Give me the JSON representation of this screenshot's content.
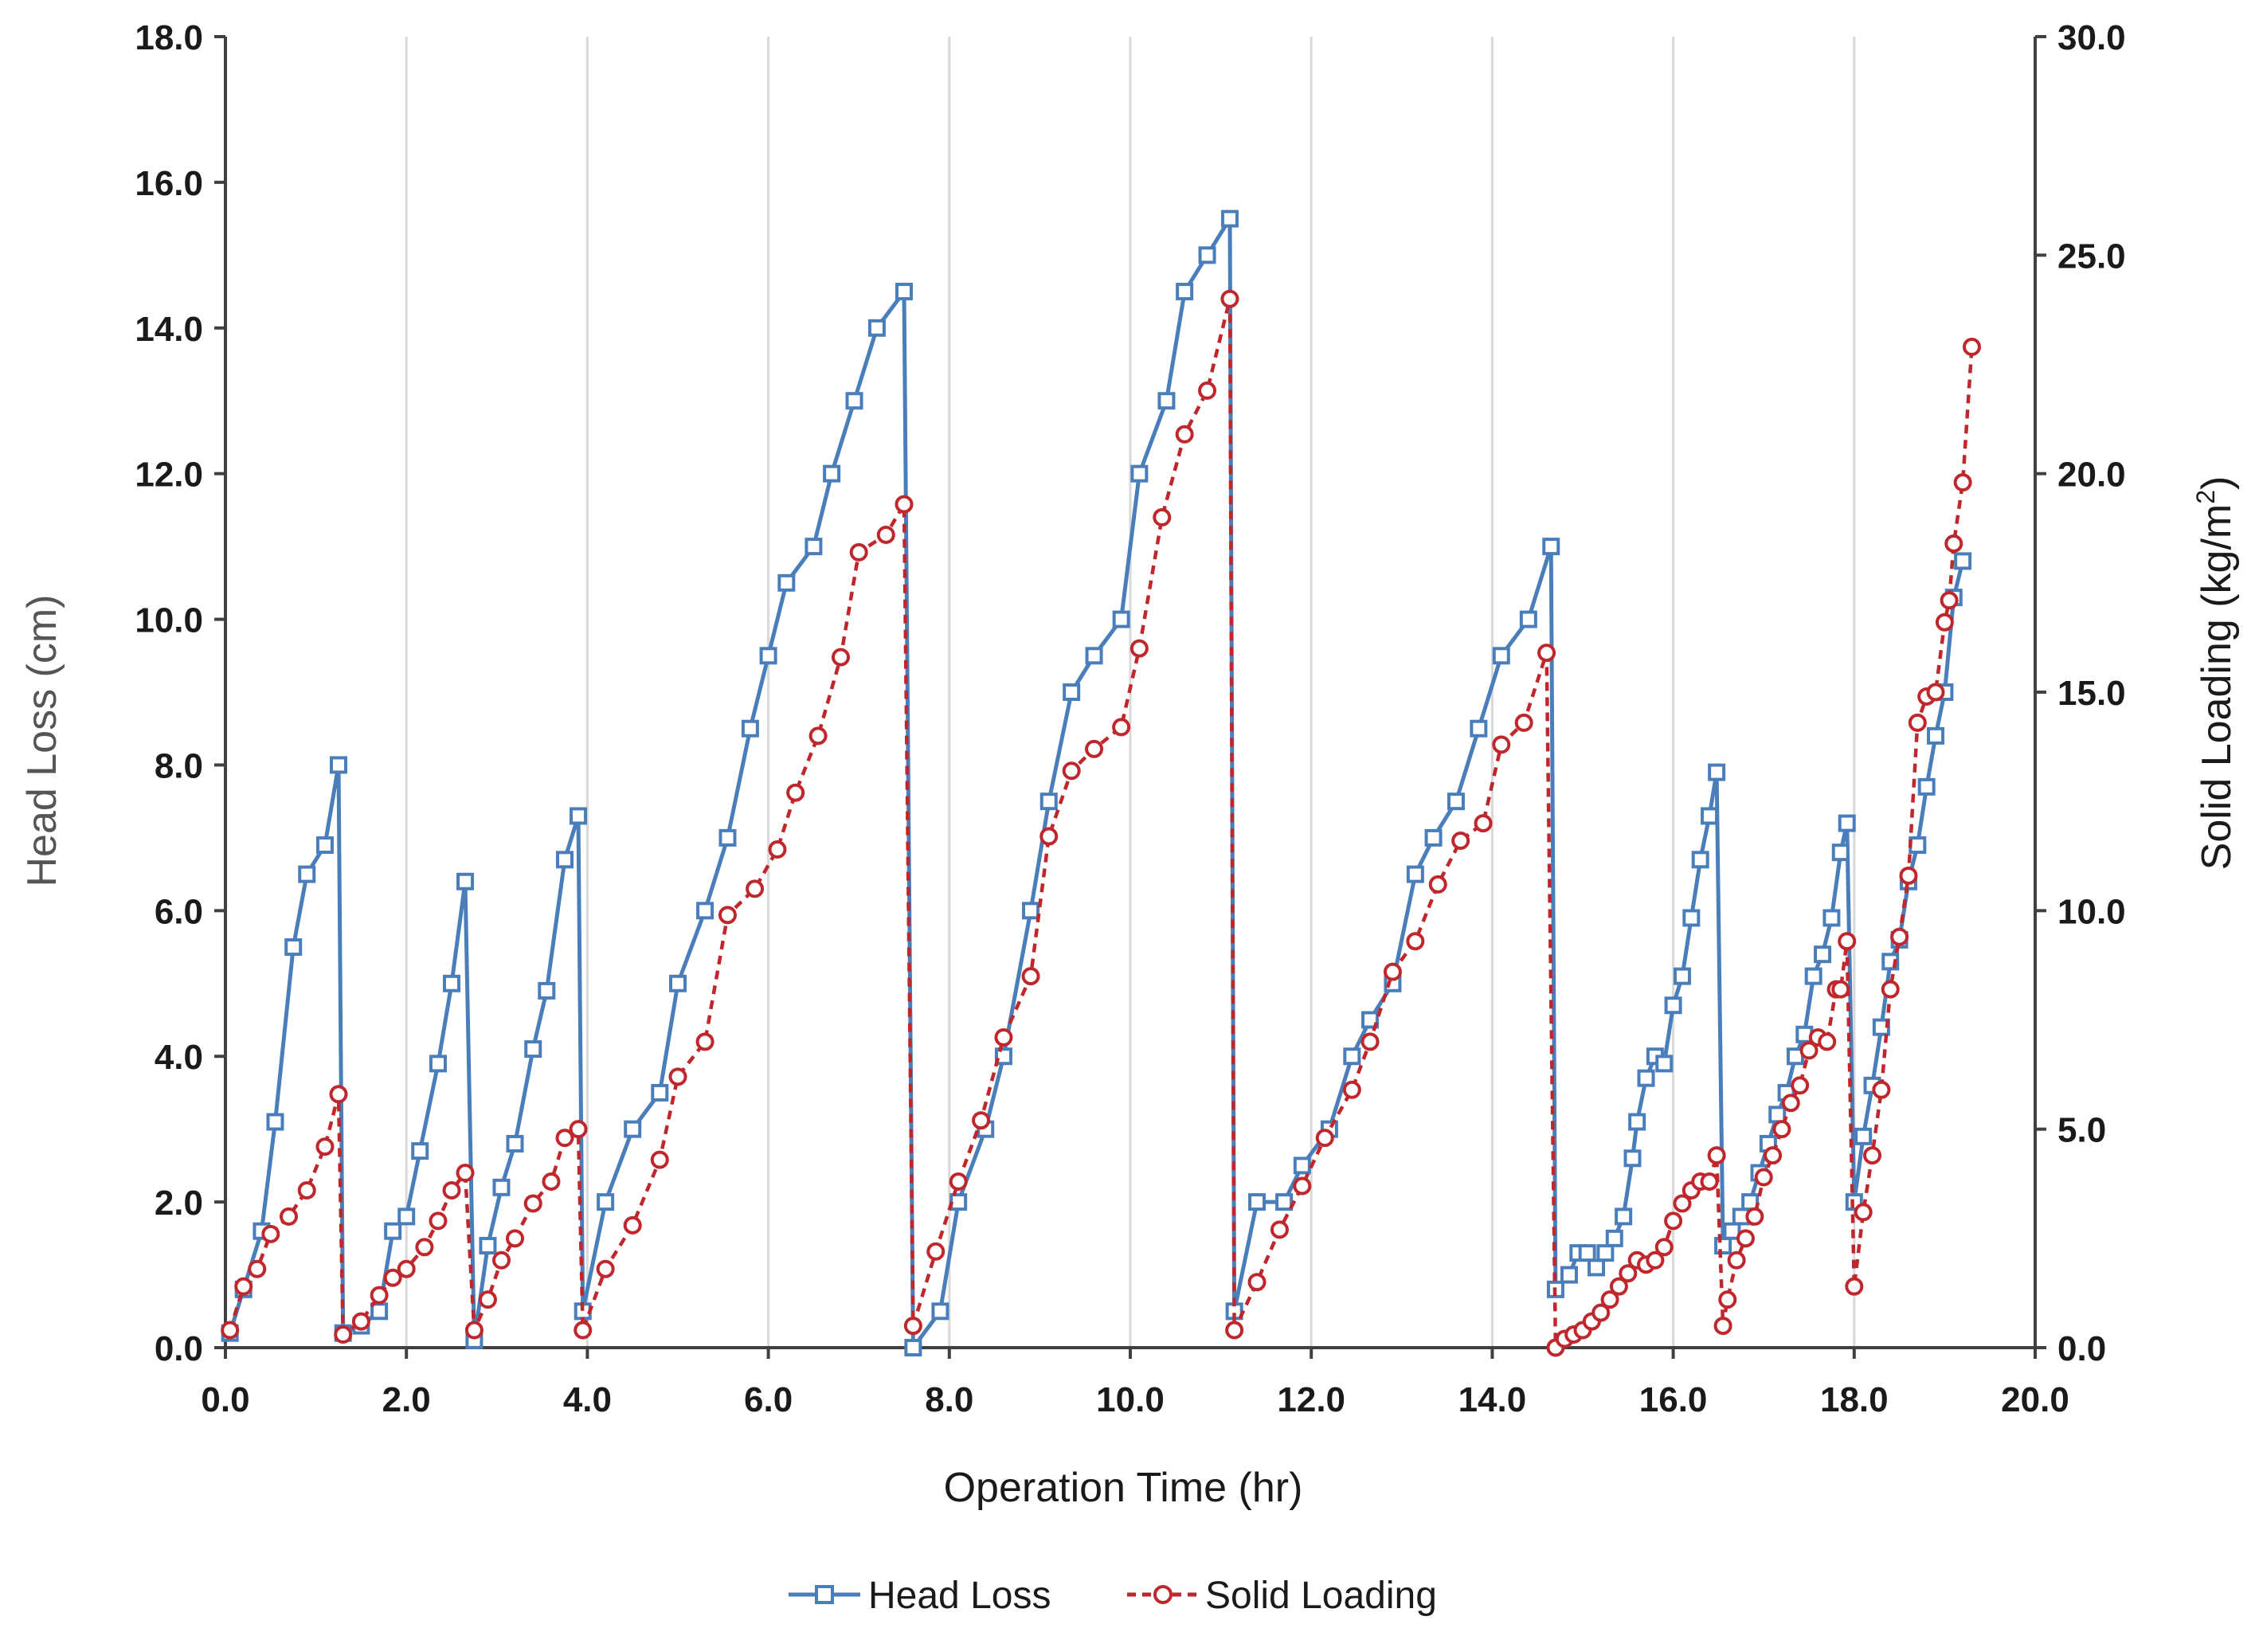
{
  "chart_data": {
    "type": "line",
    "xlabel": "Operation Time (hr)",
    "ylabel": "Head Loss (cm)",
    "y2label_main": "Solid Loading (kg/m",
    "y2label_sup": "2",
    "y2label_close": ")",
    "xlim": [
      0,
      20
    ],
    "ylim": [
      0,
      18
    ],
    "y2lim": [
      0,
      30
    ],
    "x_ticks": [
      "0.0",
      "2.0",
      "4.0",
      "6.0",
      "8.0",
      "10.0",
      "12.0",
      "14.0",
      "16.0",
      "18.0",
      "20.0"
    ],
    "y_ticks": [
      "0.0",
      "2.0",
      "4.0",
      "6.0",
      "8.0",
      "10.0",
      "12.0",
      "14.0",
      "16.0",
      "18.0"
    ],
    "y2_ticks": [
      "0.0",
      "5.0",
      "10.0",
      "15.0",
      "20.0",
      "25.0",
      "30.0"
    ],
    "grid": "vertical",
    "legend_position": "bottom",
    "series": [
      {
        "name": "Head Loss",
        "axis": "left",
        "color": "#4a7ebb",
        "marker": "square",
        "line": "solid",
        "points": [
          [
            0.05,
            0.2
          ],
          [
            0.2,
            0.8
          ],
          [
            0.4,
            1.6
          ],
          [
            0.55,
            3.1
          ],
          [
            0.75,
            5.5
          ],
          [
            0.9,
            6.5
          ],
          [
            1.1,
            6.9
          ],
          [
            1.25,
            8.0
          ],
          [
            1.3,
            0.2
          ],
          [
            1.5,
            0.3
          ],
          [
            1.7,
            0.5
          ],
          [
            1.85,
            1.6
          ],
          [
            2.0,
            1.8
          ],
          [
            2.15,
            2.7
          ],
          [
            2.35,
            3.9
          ],
          [
            2.5,
            5.0
          ],
          [
            2.65,
            6.4
          ],
          [
            2.75,
            0.1
          ],
          [
            2.9,
            1.4
          ],
          [
            3.05,
            2.2
          ],
          [
            3.2,
            2.8
          ],
          [
            3.4,
            4.1
          ],
          [
            3.55,
            4.9
          ],
          [
            3.75,
            6.7
          ],
          [
            3.9,
            7.3
          ],
          [
            3.95,
            0.5
          ],
          [
            4.2,
            2.0
          ],
          [
            4.5,
            3.0
          ],
          [
            4.8,
            3.5
          ],
          [
            5.0,
            5.0
          ],
          [
            5.3,
            6.0
          ],
          [
            5.55,
            7.0
          ],
          [
            5.8,
            8.5
          ],
          [
            6.0,
            9.5
          ],
          [
            6.2,
            10.5
          ],
          [
            6.5,
            11.0
          ],
          [
            6.7,
            12.0
          ],
          [
            6.95,
            13.0
          ],
          [
            7.2,
            14.0
          ],
          [
            7.5,
            14.5
          ],
          [
            7.6,
            0.0
          ],
          [
            7.9,
            0.5
          ],
          [
            8.1,
            2.0
          ],
          [
            8.4,
            3.0
          ],
          [
            8.6,
            4.0
          ],
          [
            8.9,
            6.0
          ],
          [
            9.1,
            7.5
          ],
          [
            9.35,
            9.0
          ],
          [
            9.6,
            9.5
          ],
          [
            9.9,
            10.0
          ],
          [
            10.1,
            12.0
          ],
          [
            10.4,
            13.0
          ],
          [
            10.6,
            14.5
          ],
          [
            10.85,
            15.0
          ],
          [
            11.1,
            15.5
          ],
          [
            11.15,
            0.5
          ],
          [
            11.4,
            2.0
          ],
          [
            11.7,
            2.0
          ],
          [
            11.9,
            2.5
          ],
          [
            12.2,
            3.0
          ],
          [
            12.45,
            4.0
          ],
          [
            12.65,
            4.5
          ],
          [
            12.9,
            5.0
          ],
          [
            13.15,
            6.5
          ],
          [
            13.35,
            7.0
          ],
          [
            13.6,
            7.5
          ],
          [
            13.85,
            8.5
          ],
          [
            14.1,
            9.5
          ],
          [
            14.4,
            10.0
          ],
          [
            14.65,
            11.0
          ],
          [
            14.7,
            0.8
          ],
          [
            14.85,
            1.0
          ],
          [
            14.95,
            1.3
          ],
          [
            15.05,
            1.3
          ],
          [
            15.15,
            1.1
          ],
          [
            15.25,
            1.3
          ],
          [
            15.35,
            1.5
          ],
          [
            15.45,
            1.8
          ],
          [
            15.55,
            2.6
          ],
          [
            15.6,
            3.1
          ],
          [
            15.7,
            3.7
          ],
          [
            15.8,
            4.0
          ],
          [
            15.9,
            3.9
          ],
          [
            16.0,
            4.7
          ],
          [
            16.1,
            5.1
          ],
          [
            16.2,
            5.9
          ],
          [
            16.3,
            6.7
          ],
          [
            16.4,
            7.3
          ],
          [
            16.48,
            7.9
          ],
          [
            16.55,
            1.4
          ],
          [
            16.65,
            1.6
          ],
          [
            16.75,
            1.8
          ],
          [
            16.85,
            2.0
          ],
          [
            16.95,
            2.4
          ],
          [
            17.05,
            2.8
          ],
          [
            17.15,
            3.2
          ],
          [
            17.25,
            3.5
          ],
          [
            17.35,
            4.0
          ],
          [
            17.45,
            4.3
          ],
          [
            17.55,
            5.1
          ],
          [
            17.65,
            5.4
          ],
          [
            17.75,
            5.9
          ],
          [
            17.85,
            6.8
          ],
          [
            17.92,
            7.2
          ],
          [
            18.0,
            2.0
          ],
          [
            18.1,
            2.9
          ],
          [
            18.2,
            3.6
          ],
          [
            18.3,
            4.4
          ],
          [
            18.4,
            5.3
          ],
          [
            18.5,
            5.6
          ],
          [
            18.6,
            6.4
          ],
          [
            18.7,
            6.9
          ],
          [
            18.8,
            7.7
          ],
          [
            18.9,
            8.4
          ],
          [
            19.0,
            9.0
          ],
          [
            19.1,
            10.3
          ],
          [
            19.2,
            10.8
          ]
        ]
      },
      {
        "name": "Solid Loading",
        "axis": "right",
        "color": "#c0272d",
        "marker": "circle",
        "line": "dashed",
        "points": [
          [
            0.05,
            0.4
          ],
          [
            0.2,
            1.4
          ],
          [
            0.35,
            1.8
          ],
          [
            0.5,
            2.6
          ],
          [
            0.7,
            3.0
          ],
          [
            0.9,
            3.6
          ],
          [
            1.1,
            4.6
          ],
          [
            1.25,
            5.8
          ],
          [
            1.3,
            0.3
          ],
          [
            1.5,
            0.6
          ],
          [
            1.7,
            1.2
          ],
          [
            1.85,
            1.6
          ],
          [
            2.0,
            1.8
          ],
          [
            2.2,
            2.3
          ],
          [
            2.35,
            2.9
          ],
          [
            2.5,
            3.6
          ],
          [
            2.65,
            4.0
          ],
          [
            2.75,
            0.4
          ],
          [
            2.9,
            1.1
          ],
          [
            3.05,
            2.0
          ],
          [
            3.2,
            2.5
          ],
          [
            3.4,
            3.3
          ],
          [
            3.6,
            3.8
          ],
          [
            3.75,
            4.8
          ],
          [
            3.9,
            5.0
          ],
          [
            3.95,
            0.4
          ],
          [
            4.2,
            1.8
          ],
          [
            4.5,
            2.8
          ],
          [
            4.8,
            4.3
          ],
          [
            5.0,
            6.2
          ],
          [
            5.3,
            7.0
          ],
          [
            5.55,
            9.9
          ],
          [
            5.85,
            10.5
          ],
          [
            6.1,
            11.4
          ],
          [
            6.3,
            12.7
          ],
          [
            6.55,
            14.0
          ],
          [
            6.8,
            15.8
          ],
          [
            7.0,
            18.2
          ],
          [
            7.3,
            18.6
          ],
          [
            7.5,
            19.3
          ],
          [
            7.6,
            0.5
          ],
          [
            7.85,
            2.2
          ],
          [
            8.1,
            3.8
          ],
          [
            8.35,
            5.2
          ],
          [
            8.6,
            7.1
          ],
          [
            8.9,
            8.5
          ],
          [
            9.1,
            11.7
          ],
          [
            9.35,
            13.2
          ],
          [
            9.6,
            13.7
          ],
          [
            9.9,
            14.2
          ],
          [
            10.1,
            16.0
          ],
          [
            10.35,
            19.0
          ],
          [
            10.6,
            20.9
          ],
          [
            10.85,
            21.9
          ],
          [
            11.1,
            24.0
          ],
          [
            11.15,
            0.4
          ],
          [
            11.4,
            1.5
          ],
          [
            11.65,
            2.7
          ],
          [
            11.9,
            3.7
          ],
          [
            12.15,
            4.8
          ],
          [
            12.45,
            5.9
          ],
          [
            12.65,
            7.0
          ],
          [
            12.9,
            8.6
          ],
          [
            13.15,
            9.3
          ],
          [
            13.4,
            10.6
          ],
          [
            13.65,
            11.6
          ],
          [
            13.9,
            12.0
          ],
          [
            14.1,
            13.8
          ],
          [
            14.35,
            14.3
          ],
          [
            14.6,
            15.9
          ],
          [
            14.7,
            0.0
          ],
          [
            14.8,
            0.2
          ],
          [
            14.9,
            0.3
          ],
          [
            15.0,
            0.4
          ],
          [
            15.1,
            0.6
          ],
          [
            15.2,
            0.8
          ],
          [
            15.3,
            1.1
          ],
          [
            15.4,
            1.4
          ],
          [
            15.5,
            1.7
          ],
          [
            15.6,
            2.0
          ],
          [
            15.7,
            1.9
          ],
          [
            15.8,
            2.0
          ],
          [
            15.9,
            2.3
          ],
          [
            16.0,
            2.9
          ],
          [
            16.1,
            3.3
          ],
          [
            16.2,
            3.6
          ],
          [
            16.3,
            3.8
          ],
          [
            16.4,
            3.8
          ],
          [
            16.48,
            4.4
          ],
          [
            16.55,
            0.5
          ],
          [
            16.6,
            1.1
          ],
          [
            16.7,
            2.0
          ],
          [
            16.8,
            2.5
          ],
          [
            16.9,
            3.0
          ],
          [
            17.0,
            3.9
          ],
          [
            17.1,
            4.4
          ],
          [
            17.2,
            5.0
          ],
          [
            17.3,
            5.6
          ],
          [
            17.4,
            6.0
          ],
          [
            17.5,
            6.8
          ],
          [
            17.6,
            7.1
          ],
          [
            17.7,
            7.0
          ],
          [
            17.8,
            8.2
          ],
          [
            17.85,
            8.2
          ],
          [
            17.92,
            9.3
          ],
          [
            18.0,
            1.4
          ],
          [
            18.1,
            3.1
          ],
          [
            18.2,
            4.4
          ],
          [
            18.3,
            5.9
          ],
          [
            18.4,
            8.2
          ],
          [
            18.5,
            9.4
          ],
          [
            18.6,
            10.8
          ],
          [
            18.7,
            14.3
          ],
          [
            18.8,
            14.9
          ],
          [
            18.9,
            15.0
          ],
          [
            19.0,
            16.6
          ],
          [
            19.05,
            17.1
          ],
          [
            19.1,
            18.4
          ],
          [
            19.2,
            19.8
          ],
          [
            19.3,
            22.9
          ]
        ]
      }
    ]
  }
}
